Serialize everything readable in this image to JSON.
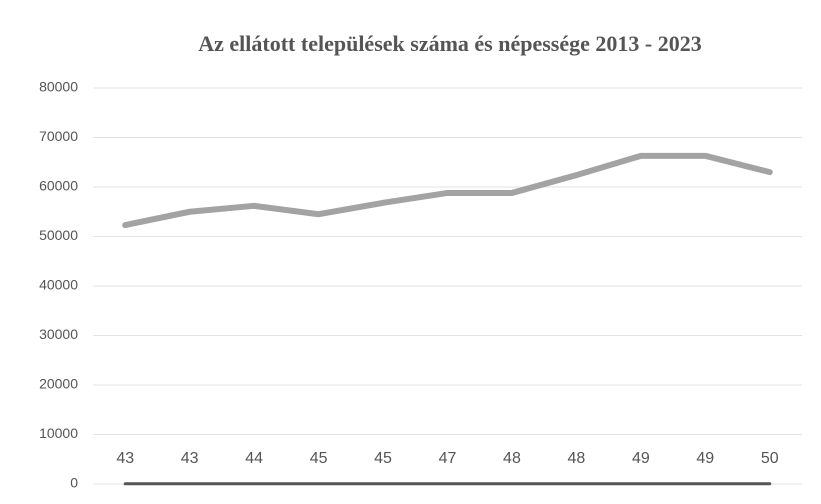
{
  "chart_data": {
    "type": "line",
    "title": "Az ellátott települések száma és népessége 2013 - 2023",
    "categories": [
      null,
      null,
      null,
      null,
      null,
      null,
      null,
      null,
      null,
      null,
      null
    ],
    "series": [
      {
        "name": null,
        "color": "#a3a3a3",
        "values": [
          52300,
          55000,
          56200,
          54500,
          56800,
          58800,
          58800,
          62400,
          66300,
          66300,
          63000
        ]
      },
      {
        "name": null,
        "color": "#555555",
        "values": [
          43,
          43,
          44,
          45,
          45,
          47,
          48,
          48,
          49,
          49,
          50
        ],
        "data_labels": true
      }
    ],
    "ylim": [
      0,
      80000
    ],
    "yticks": [
      0,
      10000,
      20000,
      30000,
      40000,
      50000,
      60000,
      70000,
      80000
    ],
    "grid": true
  }
}
